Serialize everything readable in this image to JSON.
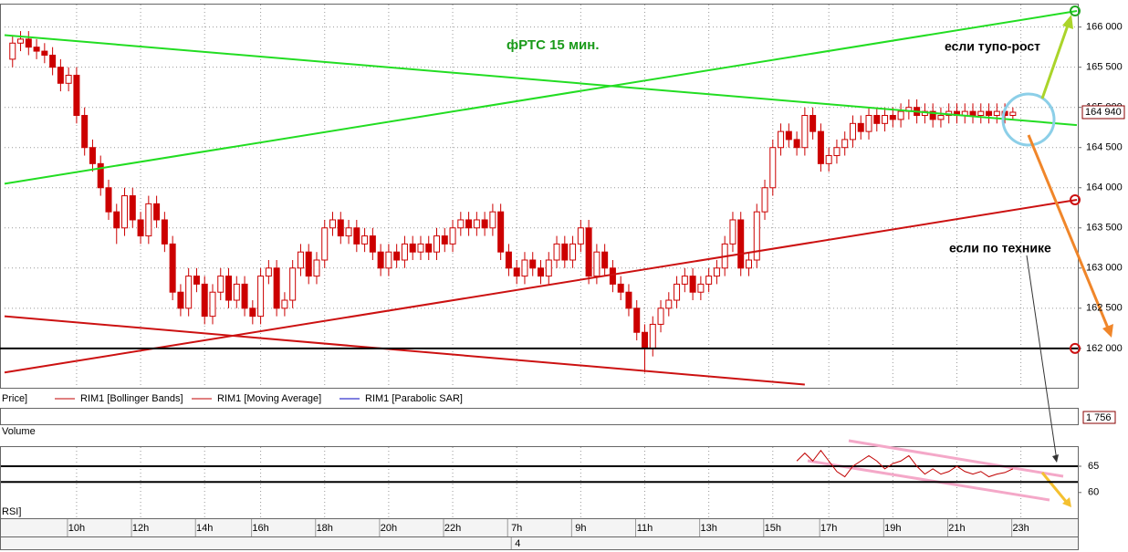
{
  "chart_data": {
    "type": "candlestick",
    "title": "фРТС   15 мин.",
    "annotations": [
      "если тупо-рост",
      "если по технике"
    ],
    "price_label": "Price]",
    "volume_label": "Volume",
    "volume_value": "1 756",
    "rsi_label": "RSI]",
    "up_color": "#ffffff",
    "down_color": "#cc0000",
    "outline_color": "#cc0000",
    "grid": true,
    "xlim": [
      -1,
      133
    ],
    "ylim": [
      161510,
      166280
    ],
    "yticks": [
      {
        "value": 166000,
        "label": "166 000"
      },
      {
        "value": 165500,
        "label": "165 500"
      },
      {
        "value": 165000,
        "label": "165 000"
      },
      {
        "value": 164500,
        "label": "164 500"
      },
      {
        "value": 164000,
        "label": "164 000"
      },
      {
        "value": 163500,
        "label": "163 500"
      },
      {
        "value": 163000,
        "label": "163 000"
      },
      {
        "value": 162500,
        "label": "162 500"
      },
      {
        "value": 162000,
        "label": "162 000"
      }
    ],
    "xticks": [
      {
        "value": 8,
        "label": "10h"
      },
      {
        "value": 16,
        "label": "12h"
      },
      {
        "value": 24,
        "label": "14h"
      },
      {
        "value": 31,
        "label": "16h"
      },
      {
        "value": 39,
        "label": "18h"
      },
      {
        "value": 47,
        "label": "20h"
      },
      {
        "value": 55,
        "label": "22h"
      },
      {
        "value": 63,
        "label": "7h"
      },
      {
        "value": 71,
        "label": "9h"
      },
      {
        "value": 79,
        "label": "11h"
      },
      {
        "value": 87,
        "label": "13h"
      },
      {
        "value": 95,
        "label": "15h"
      },
      {
        "value": 102,
        "label": "17h"
      },
      {
        "value": 110,
        "label": "19h"
      },
      {
        "value": 118,
        "label": "21h"
      },
      {
        "value": 126,
        "label": "23h"
      }
    ],
    "date_labels": [
      {
        "value": 63,
        "label": "4"
      }
    ],
    "last_price": {
      "value": 164940,
      "label": "164 940"
    },
    "indicators": [
      {
        "name": "RIM1 [Bollinger Bands]",
        "color": "#c00000"
      },
      {
        "name": "RIM1 [Moving Average]",
        "color": "#c00000"
      },
      {
        "name": "RIM1 [Parabolic SAR]",
        "color": "#0000c0"
      }
    ],
    "candles": [
      [
        165600,
        165900,
        165500,
        165800
      ],
      [
        165800,
        165950,
        165700,
        165850
      ],
      [
        165850,
        165950,
        165650,
        165750
      ],
      [
        165750,
        165850,
        165600,
        165700
      ],
      [
        165700,
        165800,
        165550,
        165650
      ],
      [
        165650,
        165750,
        165400,
        165500
      ],
      [
        165500,
        165600,
        165200,
        165300
      ],
      [
        165300,
        165500,
        165200,
        165400
      ],
      [
        165400,
        165500,
        164800,
        164900
      ],
      [
        164900,
        165000,
        164400,
        164500
      ],
      [
        164500,
        164600,
        164200,
        164300
      ],
      [
        164300,
        164400,
        163900,
        164000
      ],
      [
        164000,
        164100,
        163600,
        163700
      ],
      [
        163700,
        163800,
        163300,
        163500
      ],
      [
        163500,
        164000,
        163400,
        163900
      ],
      [
        163900,
        164000,
        163500,
        163600
      ],
      [
        163600,
        163700,
        163300,
        163400
      ],
      [
        163400,
        163900,
        163300,
        163800
      ],
      [
        163800,
        163900,
        163500,
        163600
      ],
      [
        163600,
        163700,
        163200,
        163300
      ],
      [
        163300,
        163400,
        162600,
        162700
      ],
      [
        162700,
        162800,
        162400,
        162500
      ],
      [
        162500,
        163000,
        162400,
        162900
      ],
      [
        162900,
        163000,
        162700,
        162800
      ],
      [
        162800,
        162900,
        162300,
        162400
      ],
      [
        162400,
        162800,
        162300,
        162700
      ],
      [
        162700,
        163000,
        162600,
        162900
      ],
      [
        162900,
        163000,
        162500,
        162600
      ],
      [
        162600,
        162900,
        162500,
        162800
      ],
      [
        162800,
        162900,
        162400,
        162500
      ],
      [
        162500,
        162600,
        162300,
        162400
      ],
      [
        162400,
        163000,
        162300,
        162900
      ],
      [
        162900,
        163100,
        162800,
        163000
      ],
      [
        163000,
        163100,
        162400,
        162500
      ],
      [
        162500,
        162700,
        162400,
        162600
      ],
      [
        162600,
        163100,
        162500,
        163000
      ],
      [
        163000,
        163300,
        162900,
        163200
      ],
      [
        163200,
        163300,
        162800,
        162900
      ],
      [
        162900,
        163200,
        162800,
        163100
      ],
      [
        163100,
        163600,
        163000,
        163500
      ],
      [
        163500,
        163700,
        163400,
        163600
      ],
      [
        163600,
        163700,
        163300,
        163400
      ],
      [
        163400,
        163600,
        163300,
        163500
      ],
      [
        163500,
        163600,
        163200,
        163300
      ],
      [
        163300,
        163500,
        163200,
        163400
      ],
      [
        163400,
        163500,
        163100,
        163200
      ],
      [
        163200,
        163300,
        162900,
        163000
      ],
      [
        163000,
        163300,
        162900,
        163200
      ],
      [
        163200,
        163300,
        163000,
        163100
      ],
      [
        163100,
        163400,
        163000,
        163300
      ],
      [
        163300,
        163400,
        163100,
        163200
      ],
      [
        163200,
        163400,
        163100,
        163300
      ],
      [
        163300,
        163400,
        163100,
        163200
      ],
      [
        163200,
        163500,
        163100,
        163400
      ],
      [
        163400,
        163500,
        163200,
        163300
      ],
      [
        163300,
        163600,
        163200,
        163500
      ],
      [
        163500,
        163700,
        163400,
        163600
      ],
      [
        163600,
        163700,
        163400,
        163500
      ],
      [
        163500,
        163700,
        163400,
        163600
      ],
      [
        163600,
        163700,
        163400,
        163500
      ],
      [
        163500,
        163800,
        163400,
        163700
      ],
      [
        163700,
        163800,
        163100,
        163200
      ],
      [
        163200,
        163300,
        162900,
        163000
      ],
      [
        163000,
        163100,
        162800,
        162900
      ],
      [
        162900,
        163200,
        162800,
        163100
      ],
      [
        163100,
        163200,
        162900,
        163000
      ],
      [
        163000,
        163100,
        162800,
        162900
      ],
      [
        162900,
        163200,
        162800,
        163100
      ],
      [
        163100,
        163400,
        163000,
        163300
      ],
      [
        163300,
        163400,
        163000,
        163100
      ],
      [
        163100,
        163400,
        163000,
        163300
      ],
      [
        163300,
        163600,
        163200,
        163500
      ],
      [
        163500,
        163600,
        162800,
        162900
      ],
      [
        162900,
        163300,
        162800,
        163200
      ],
      [
        163200,
        163300,
        162900,
        163000
      ],
      [
        163000,
        163100,
        162700,
        162800
      ],
      [
        162800,
        162900,
        162600,
        162700
      ],
      [
        162700,
        162800,
        162400,
        162500
      ],
      [
        162500,
        162600,
        162100,
        162200
      ],
      [
        162200,
        162300,
        161700,
        162000
      ],
      [
        162000,
        162400,
        161900,
        162300
      ],
      [
        162300,
        162600,
        162200,
        162500
      ],
      [
        162500,
        162700,
        162400,
        162600
      ],
      [
        162600,
        162900,
        162500,
        162800
      ],
      [
        162800,
        163000,
        162700,
        162900
      ],
      [
        162900,
        163000,
        162600,
        162700
      ],
      [
        162700,
        162900,
        162600,
        162800
      ],
      [
        162800,
        163000,
        162700,
        162900
      ],
      [
        162900,
        163100,
        162800,
        163000
      ],
      [
        163000,
        163400,
        162900,
        163300
      ],
      [
        163300,
        163700,
        163200,
        163600
      ],
      [
        163600,
        163700,
        162900,
        163000
      ],
      [
        163000,
        163200,
        162900,
        163100
      ],
      [
        163100,
        163800,
        163000,
        163700
      ],
      [
        163700,
        164100,
        163600,
        164000
      ],
      [
        164000,
        164600,
        163900,
        164500
      ],
      [
        164500,
        164800,
        164400,
        164700
      ],
      [
        164700,
        164800,
        164500,
        164600
      ],
      [
        164600,
        164700,
        164400,
        164500
      ],
      [
        164500,
        165000,
        164400,
        164900
      ],
      [
        164900,
        165000,
        164600,
        164700
      ],
      [
        164700,
        164800,
        164200,
        164300
      ],
      [
        164300,
        164500,
        164200,
        164400
      ],
      [
        164400,
        164600,
        164300,
        164500
      ],
      [
        164500,
        164700,
        164400,
        164600
      ],
      [
        164600,
        164900,
        164500,
        164800
      ],
      [
        164800,
        164900,
        164600,
        164700
      ],
      [
        164700,
        165000,
        164600,
        164900
      ],
      [
        164900,
        165000,
        164700,
        164800
      ],
      [
        164800,
        165000,
        164700,
        164900
      ],
      [
        164900,
        165000,
        164750,
        164850
      ],
      [
        164850,
        165050,
        164750,
        164950
      ],
      [
        164950,
        165100,
        164850,
        165000
      ],
      [
        165000,
        165100,
        164800,
        164900
      ],
      [
        164900,
        165050,
        164800,
        164950
      ],
      [
        164950,
        165050,
        164750,
        164850
      ],
      [
        164850,
        165000,
        164750,
        164900
      ],
      [
        164900,
        165050,
        164800,
        164950
      ],
      [
        164950,
        165050,
        164800,
        164900
      ],
      [
        164900,
        165050,
        164800,
        164950
      ],
      [
        164950,
        165050,
        164800,
        164900
      ],
      [
        164900,
        165050,
        164800,
        164950
      ],
      [
        164950,
        165050,
        164800,
        164900
      ],
      [
        164900,
        165050,
        164800,
        164950
      ],
      [
        164950,
        165050,
        164800,
        164900
      ],
      [
        164900,
        165000,
        164850,
        164940
      ]
    ],
    "trendlines": [
      {
        "color": "#22dd22",
        "points": [
          [
            -1,
            165900
          ],
          [
            133,
            164780
          ]
        ]
      },
      {
        "color": "#22dd22",
        "points": [
          [
            -1,
            164050
          ],
          [
            133,
            166200
          ]
        ]
      },
      {
        "color": "#cc1111",
        "points": [
          [
            -1,
            161700
          ],
          [
            133,
            163850
          ]
        ]
      },
      {
        "color": "#cc1111",
        "points": [
          [
            -1,
            162400
          ],
          [
            99,
            161550
          ]
        ]
      }
    ],
    "hlines": [
      {
        "value": 162000,
        "color": "#000000"
      }
    ],
    "markers": [
      {
        "x": 133,
        "value": 166200,
        "color": "#22aa22"
      },
      {
        "x": 133,
        "value": 163850,
        "color": "#cc1111"
      },
      {
        "x": 133,
        "value": 162000,
        "color": "#cc1111"
      }
    ],
    "rsi": {
      "ylim": [
        55.1,
        68.3
      ],
      "yticks": [
        65,
        60
      ],
      "levels": [
        65,
        62
      ],
      "color": "#c00000",
      "x": [
        98,
        99,
        100,
        101,
        102,
        103,
        104,
        105,
        106,
        107,
        108,
        109,
        110,
        111,
        112,
        113,
        114,
        115,
        116,
        117,
        118,
        119,
        120,
        121,
        122,
        123,
        124,
        125
      ],
      "values": [
        66,
        67.5,
        66,
        68,
        66,
        64,
        63,
        65,
        66,
        67,
        66,
        64.5,
        65.5,
        66,
        67,
        65,
        63.5,
        64.5,
        63.5,
        64,
        65,
        64,
        63.5,
        64,
        63,
        63.5,
        63.8,
        64.5
      ]
    }
  }
}
